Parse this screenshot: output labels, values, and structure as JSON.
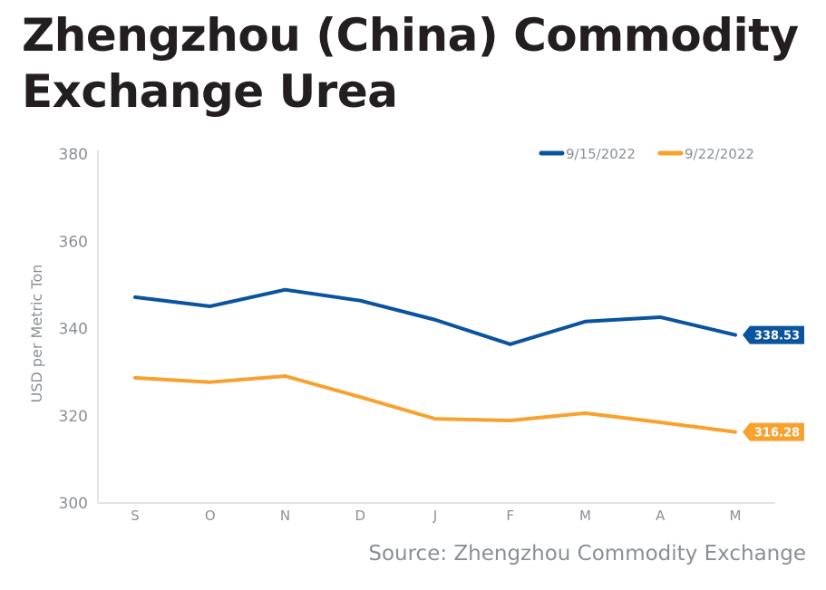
{
  "title": "Zhengzhou (China) Commodity Exchange Urea",
  "source": "Source: Zhengzhou Commodity Exchange",
  "chart_data": {
    "type": "line",
    "title": "Zhengzhou (China) Commodity Exchange Urea",
    "xlabel": "",
    "ylabel": "USD per Metric Ton",
    "categories": [
      "S",
      "O",
      "N",
      "D",
      "J",
      "F",
      "M",
      "A",
      "M"
    ],
    "ylim": [
      300,
      380
    ],
    "yticks": [
      "300",
      "320",
      "340",
      "360",
      "380"
    ],
    "grid": false,
    "legend_position": "top-right",
    "series": [
      {
        "name": "9/15/2022",
        "color": "#0a539e",
        "values": [
          347.2,
          345.1,
          348.9,
          346.4,
          342.0,
          336.4,
          341.6,
          342.6,
          338.53
        ],
        "end_label": "338.53"
      },
      {
        "name": "9/22/2022",
        "color": "#f7a12f",
        "values": [
          328.7,
          327.7,
          329.1,
          324.3,
          319.3,
          318.9,
          320.6,
          318.5,
          316.28
        ],
        "end_label": "316.28"
      }
    ]
  }
}
